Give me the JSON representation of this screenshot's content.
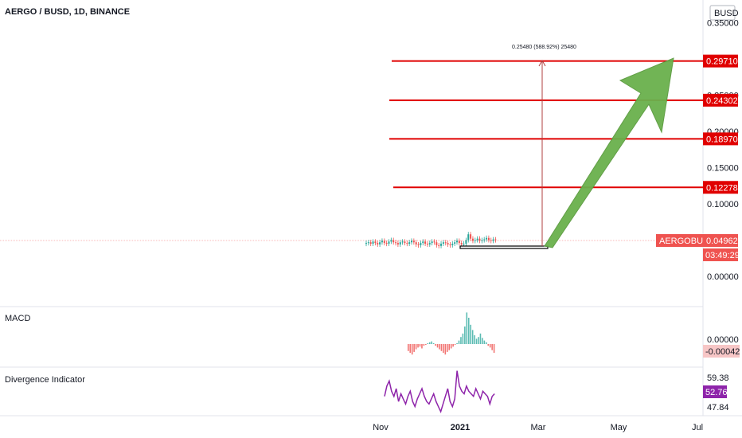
{
  "header": {
    "symbol_title": "AERGO / BUSD, 1D, BINANCE",
    "currency_button": "BUSD"
  },
  "chart_data": {
    "type": "candlestick",
    "price_axis": {
      "ticks": [
        "0.35000",
        "0.25000",
        "0.20000",
        "0.15000",
        "0.10000",
        "0.00000"
      ],
      "tick_values": [
        0.35,
        0.25,
        0.2,
        0.15,
        0.1,
        0.0
      ]
    },
    "time_axis": {
      "ticks": [
        "Nov",
        "2021",
        "Mar",
        "May",
        "Jul"
      ]
    },
    "target_levels": [
      {
        "label": "0.29710",
        "value": 0.2971
      },
      {
        "label": "0.24302",
        "value": 0.24302
      },
      {
        "label": "0.18970",
        "value": 0.1897
      },
      {
        "label": "0.12278",
        "value": 0.12278
      }
    ],
    "current_price": {
      "symbol": "AERGOBUSD",
      "value_label": "0.04962",
      "value": 0.04962,
      "countdown": "03:49:29"
    },
    "measure_annotation": "0.25480 (588.92%) 25480",
    "candles": [
      0.046,
      0.047,
      0.045,
      0.048,
      0.046,
      0.044,
      0.047,
      0.049,
      0.046,
      0.045,
      0.048,
      0.05,
      0.047,
      0.046,
      0.044,
      0.047,
      0.048,
      0.046,
      0.045,
      0.047,
      0.049,
      0.047,
      0.044,
      0.043,
      0.046,
      0.048,
      0.045,
      0.044,
      0.046,
      0.048,
      0.047,
      0.043,
      0.042,
      0.045,
      0.047,
      0.046,
      0.044,
      0.043,
      0.045,
      0.047,
      0.049,
      0.046,
      0.044,
      0.045,
      0.05,
      0.058,
      0.052,
      0.049,
      0.05,
      0.052,
      0.049,
      0.05,
      0.051,
      0.053,
      0.05,
      0.049,
      0.051,
      0.05
    ],
    "macd": {
      "label": "MACD",
      "tick": "0.00000",
      "value_label": "-0.00042",
      "histogram": [
        -8,
        -10,
        -12,
        -9,
        -6,
        -4,
        -3,
        -5,
        -2,
        -1,
        1,
        2,
        3,
        1,
        -2,
        -4,
        -6,
        -8,
        -10,
        -12,
        -9,
        -7,
        -5,
        -3,
        -1,
        1,
        4,
        8,
        12,
        20,
        36,
        30,
        22,
        16,
        10,
        6,
        8,
        12,
        7,
        4,
        2,
        -2,
        -4,
        -7,
        -10
      ]
    },
    "divergence": {
      "label": "Divergence Indicator",
      "ticks": [
        "59.38",
        "47.84"
      ],
      "value_label": "52.76",
      "values": [
        52,
        56,
        58,
        54,
        52,
        55,
        50,
        53,
        51,
        49,
        52,
        54,
        50,
        48,
        51,
        53,
        55,
        52,
        50,
        49,
        51,
        53,
        50,
        48,
        46,
        49,
        52,
        55,
        50,
        48,
        51,
        62,
        56,
        54,
        53,
        56,
        54,
        53,
        52,
        55,
        53,
        51,
        54,
        53,
        52,
        49,
        52,
        53
      ]
    },
    "colors": {
      "up": "#26a69a",
      "down": "#ef5350",
      "target_line": "#e00000",
      "arrow": "#6ab04c",
      "divergence": "#8e24aa",
      "macd_label_bg": "#f7c6c6"
    }
  }
}
